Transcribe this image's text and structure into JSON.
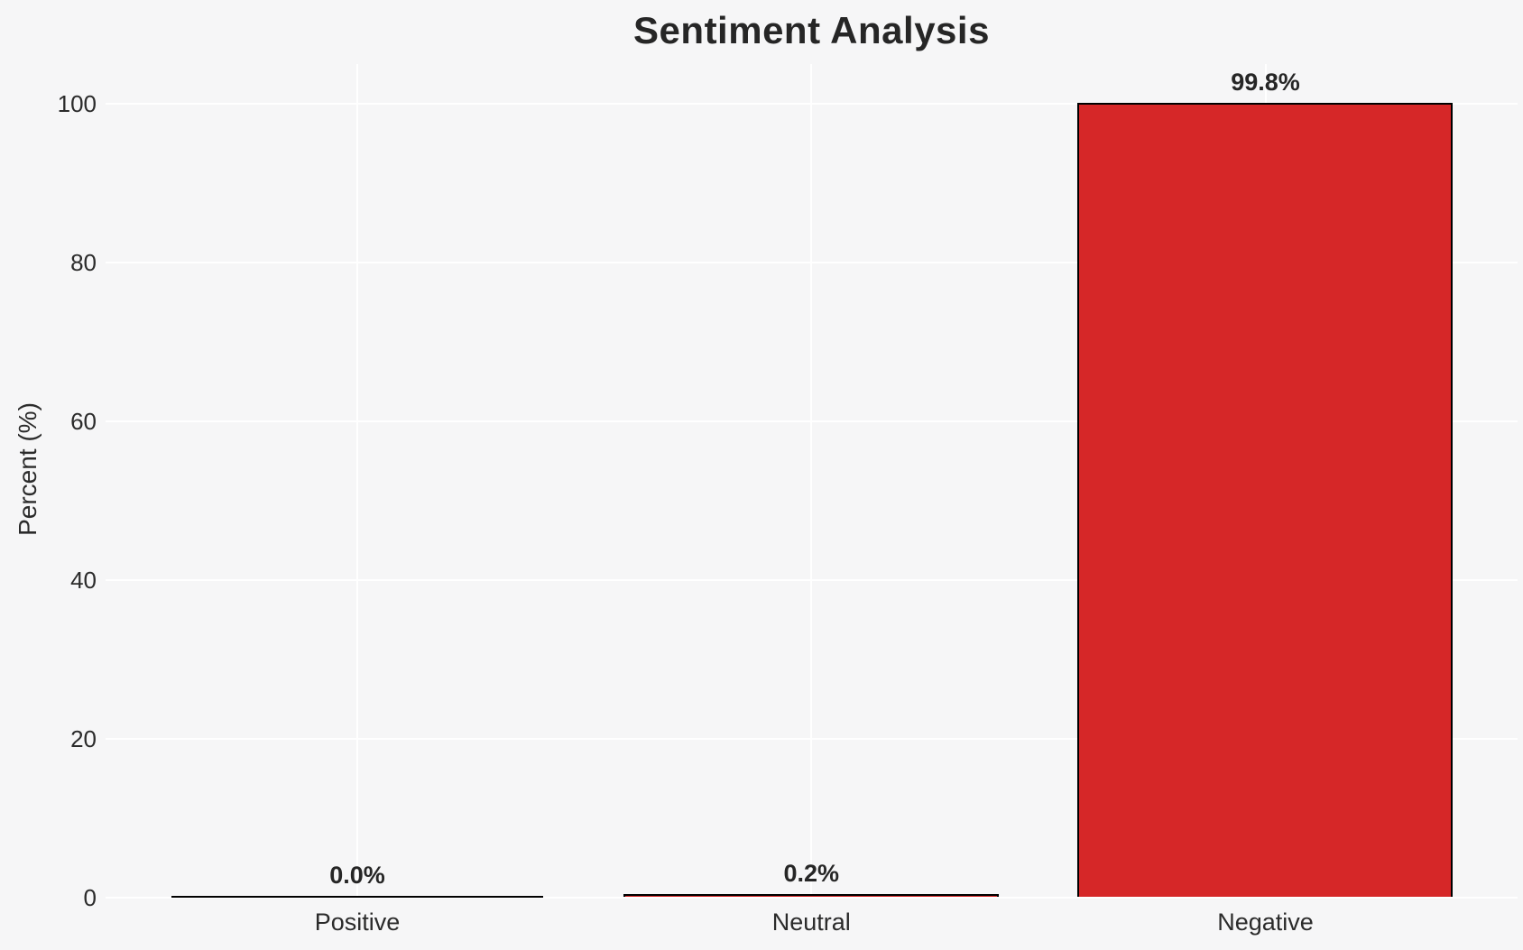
{
  "chart_data": {
    "type": "bar",
    "title": "Sentiment Analysis",
    "ylabel": "Percent (%)",
    "xlabel": "",
    "categories": [
      "Positive",
      "Neutral",
      "Negative"
    ],
    "values": [
      0.0,
      0.2,
      99.8
    ],
    "bar_labels": [
      "0.0%",
      "0.2%",
      "99.8%"
    ],
    "yticks": [
      0,
      20,
      40,
      60,
      80,
      100
    ],
    "ylim": [
      0,
      105
    ],
    "grid": "both",
    "legend": "none",
    "colors": {
      "bar_fill": "#d62728",
      "bar_edge": "#000000",
      "background": "#f6f6f7",
      "gridline": "#ffffff",
      "title_text": "#262626",
      "text": "#2b2b2b"
    }
  }
}
